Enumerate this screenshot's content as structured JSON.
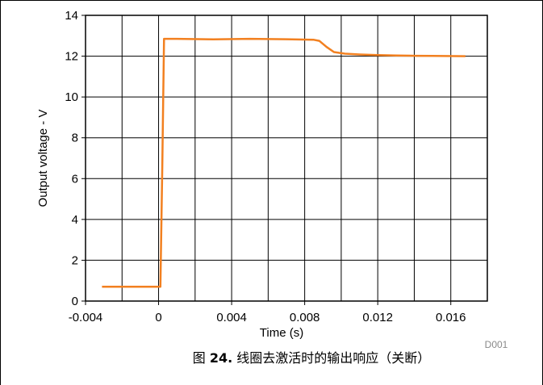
{
  "chart_data": {
    "type": "line",
    "xlabel": "Time (s)",
    "ylabel": "Output voltage - V",
    "xlim": [
      -0.004,
      0.018
    ],
    "ylim": [
      0,
      14
    ],
    "x_ticks": [
      -0.004,
      0,
      0.004,
      0.008,
      0.012,
      0.016
    ],
    "x_tick_labels": [
      "-0.004",
      "0",
      "0.004",
      "0.008",
      "0.012",
      "0.016"
    ],
    "y_ticks": [
      0,
      2,
      4,
      6,
      8,
      10,
      12,
      14
    ],
    "y_tick_labels": [
      "0",
      "2",
      "4",
      "6",
      "8",
      "10",
      "12",
      "14"
    ],
    "grid": true,
    "series": [
      {
        "color": "#F28020",
        "x": [
          -0.0031,
          -0.0015,
          0.0,
          0.0001,
          0.0002,
          0.0003,
          0.001,
          0.003,
          0.005,
          0.007,
          0.0085,
          0.0088,
          0.0092,
          0.0096,
          0.0102,
          0.011,
          0.012,
          0.013,
          0.014,
          0.015,
          0.0168
        ],
        "y": [
          0.7,
          0.7,
          0.7,
          0.7,
          6.5,
          12.85,
          12.85,
          12.82,
          12.85,
          12.83,
          12.8,
          12.75,
          12.45,
          12.2,
          12.12,
          12.08,
          12.05,
          12.03,
          12.02,
          12.01,
          12.0
        ]
      }
    ]
  },
  "watermark": "D001",
  "caption": {
    "prefix": "图 ",
    "number": "24.",
    "text": " 线圈去激活时的输出响应（关断）"
  },
  "colors": {
    "grid": "#000000",
    "line": "#F28020",
    "border": "#000000"
  }
}
